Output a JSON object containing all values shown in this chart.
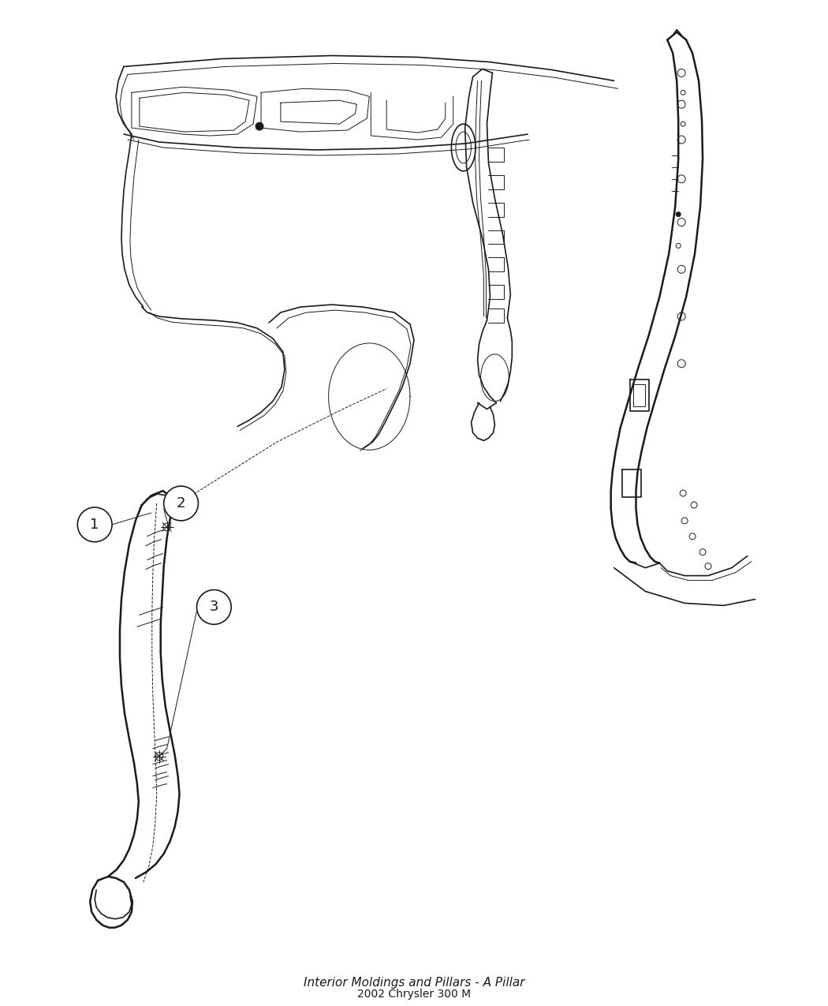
{
  "title": "Interior Moldings and Pillars - A Pillar",
  "subtitle": "2002 Chrysler 300 M",
  "background_color": "#ffffff",
  "line_color": "#1a1a1a",
  "fig_width": 10.5,
  "fig_height": 12.75,
  "dpi": 100
}
